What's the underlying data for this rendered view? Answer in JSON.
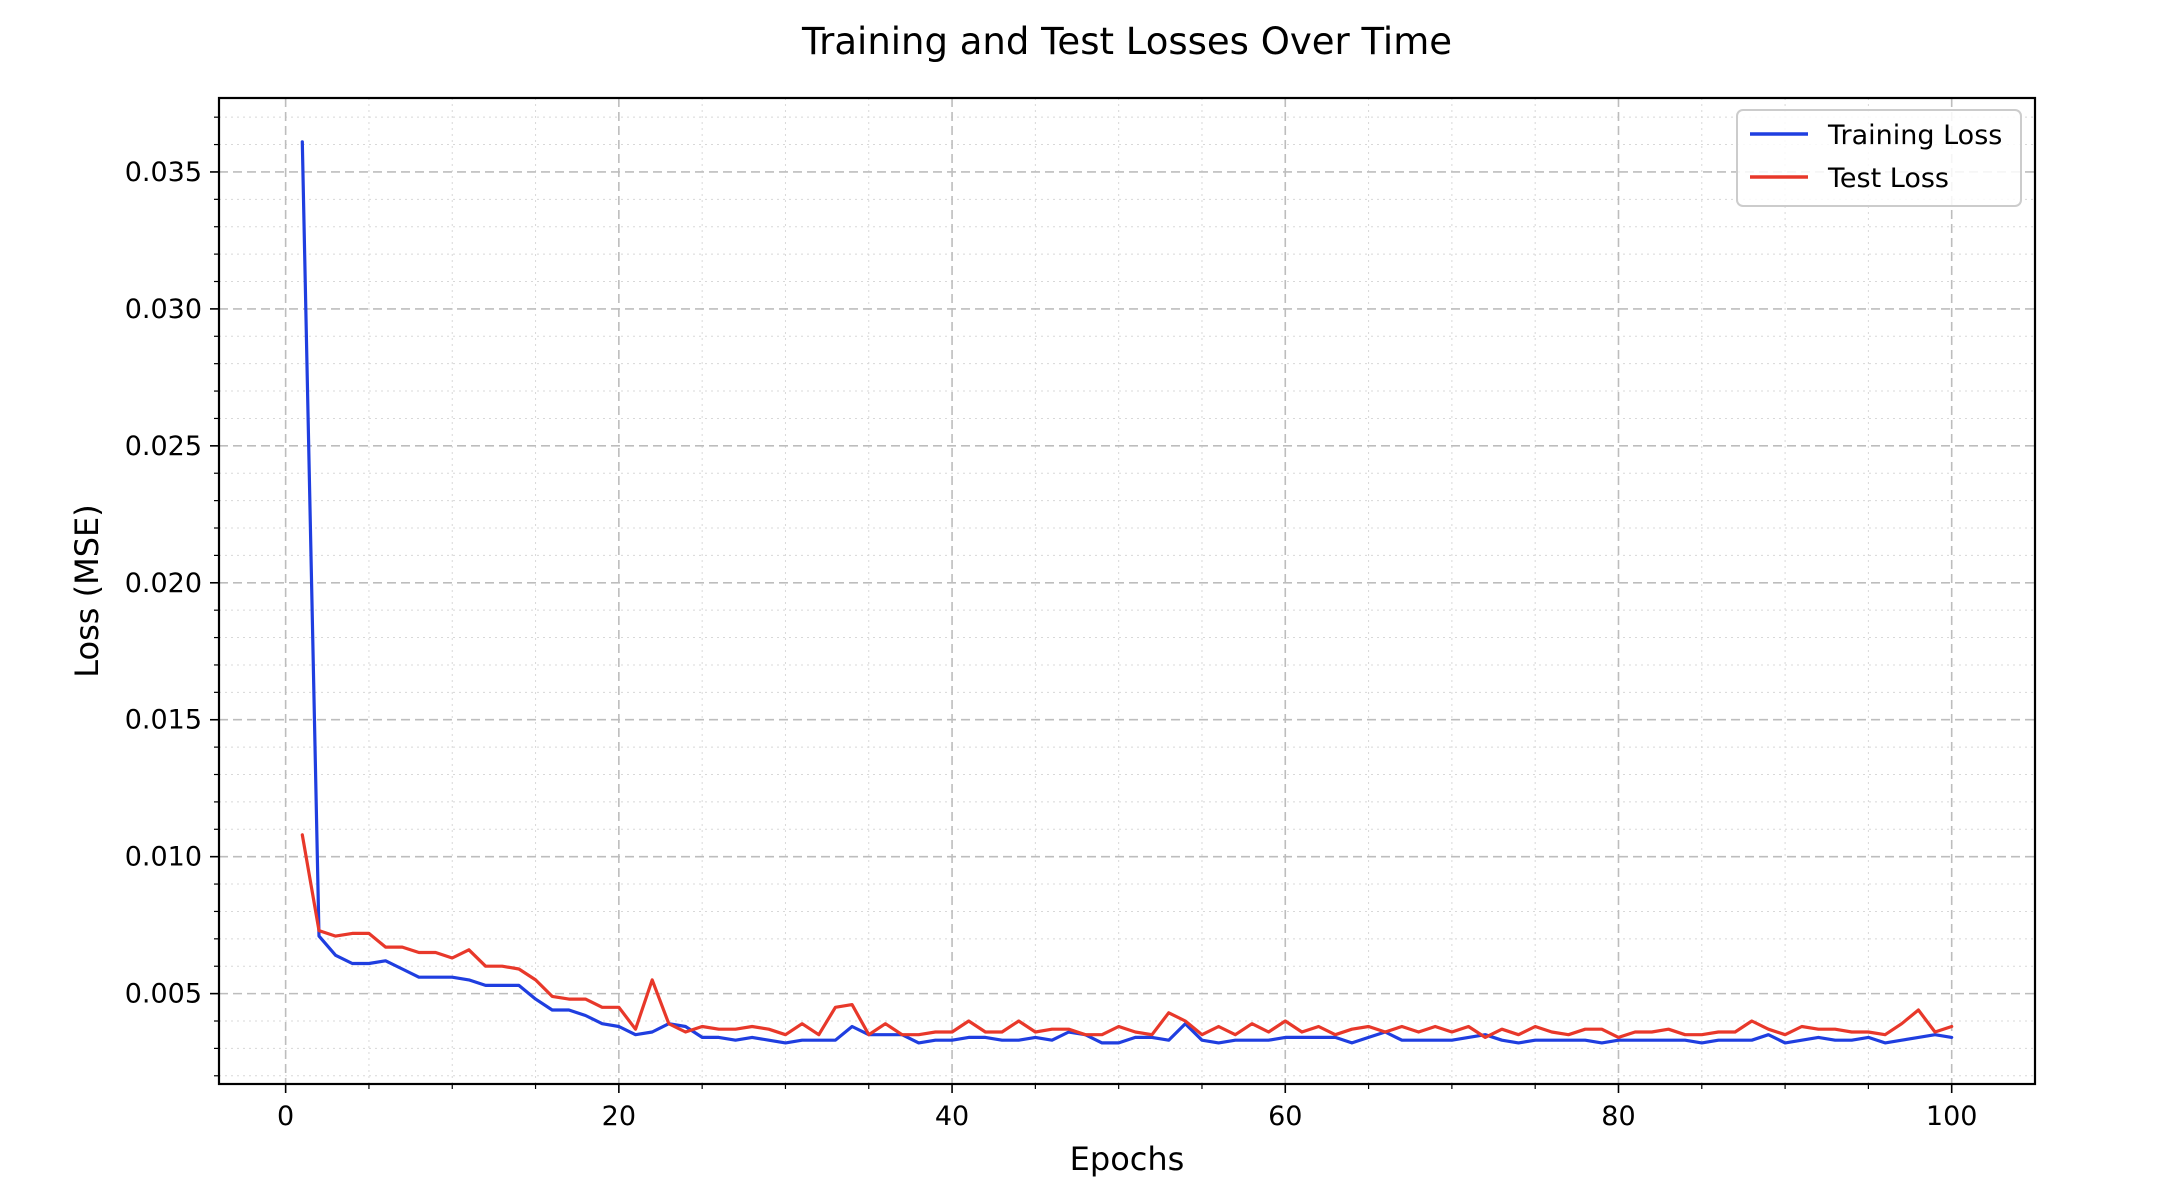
{
  "chart_data": {
    "type": "line",
    "title": "Training and Test Losses Over Time",
    "xlabel": "Epochs",
    "ylabel": "Loss (MSE)",
    "xlim": [
      -4,
      105
    ],
    "ylim": [
      0.0017,
      0.0377
    ],
    "xticks": [
      0,
      20,
      40,
      60,
      80,
      100
    ],
    "xtick_labels": [
      "0",
      "20",
      "40",
      "60",
      "80",
      "100"
    ],
    "yticks": [
      0.005,
      0.01,
      0.015,
      0.02,
      0.025,
      0.03,
      0.035
    ],
    "ytick_labels": [
      "0.005",
      "0.010",
      "0.015",
      "0.020",
      "0.025",
      "0.030",
      "0.035"
    ],
    "grid": true,
    "legend_position": "top-right",
    "series": [
      {
        "name": "Training Loss",
        "color": "#1f3ee0",
        "x": [
          1,
          2,
          3,
          4,
          5,
          6,
          7,
          8,
          9,
          10,
          11,
          12,
          13,
          14,
          15,
          16,
          17,
          18,
          19,
          20,
          21,
          22,
          23,
          24,
          25,
          26,
          27,
          28,
          29,
          30,
          31,
          32,
          33,
          34,
          35,
          36,
          37,
          38,
          39,
          40,
          41,
          42,
          43,
          44,
          45,
          46,
          47,
          48,
          49,
          50,
          51,
          52,
          53,
          54,
          55,
          56,
          57,
          58,
          59,
          60,
          61,
          62,
          63,
          64,
          65,
          66,
          67,
          68,
          69,
          70,
          71,
          72,
          73,
          74,
          75,
          76,
          77,
          78,
          79,
          80,
          81,
          82,
          83,
          84,
          85,
          86,
          87,
          88,
          89,
          90,
          91,
          92,
          93,
          94,
          95,
          96,
          97,
          98,
          99,
          100
        ],
        "values": [
          0.0361,
          0.0071,
          0.0064,
          0.0061,
          0.0061,
          0.0062,
          0.0059,
          0.0056,
          0.0056,
          0.0056,
          0.0055,
          0.0053,
          0.0053,
          0.0053,
          0.0048,
          0.0044,
          0.0044,
          0.0042,
          0.0039,
          0.0038,
          0.0035,
          0.0036,
          0.0039,
          0.0038,
          0.0034,
          0.0034,
          0.0033,
          0.0034,
          0.0033,
          0.0032,
          0.0033,
          0.0033,
          0.0033,
          0.0038,
          0.0035,
          0.0035,
          0.0035,
          0.0032,
          0.0033,
          0.0033,
          0.0034,
          0.0034,
          0.0033,
          0.0033,
          0.0034,
          0.0033,
          0.0036,
          0.0035,
          0.0032,
          0.0032,
          0.0034,
          0.0034,
          0.0033,
          0.0039,
          0.0033,
          0.0032,
          0.0033,
          0.0033,
          0.0033,
          0.0034,
          0.0034,
          0.0034,
          0.0034,
          0.0032,
          0.0034,
          0.0036,
          0.0033,
          0.0033,
          0.0033,
          0.0033,
          0.0034,
          0.0035,
          0.0033,
          0.0032,
          0.0033,
          0.0033,
          0.0033,
          0.0033,
          0.0032,
          0.0033,
          0.0033,
          0.0033,
          0.0033,
          0.0033,
          0.0032,
          0.0033,
          0.0033,
          0.0033,
          0.0035,
          0.0032,
          0.0033,
          0.0034,
          0.0033,
          0.0033,
          0.0034,
          0.0032,
          0.0033,
          0.0034,
          0.0035,
          0.0034
        ]
      },
      {
        "name": "Test Loss",
        "color": "#e8382a",
        "x": [
          1,
          2,
          3,
          4,
          5,
          6,
          7,
          8,
          9,
          10,
          11,
          12,
          13,
          14,
          15,
          16,
          17,
          18,
          19,
          20,
          21,
          22,
          23,
          24,
          25,
          26,
          27,
          28,
          29,
          30,
          31,
          32,
          33,
          34,
          35,
          36,
          37,
          38,
          39,
          40,
          41,
          42,
          43,
          44,
          45,
          46,
          47,
          48,
          49,
          50,
          51,
          52,
          53,
          54,
          55,
          56,
          57,
          58,
          59,
          60,
          61,
          62,
          63,
          64,
          65,
          66,
          67,
          68,
          69,
          70,
          71,
          72,
          73,
          74,
          75,
          76,
          77,
          78,
          79,
          80,
          81,
          82,
          83,
          84,
          85,
          86,
          87,
          88,
          89,
          90,
          91,
          92,
          93,
          94,
          95,
          96,
          97,
          98,
          99,
          100
        ],
        "values": [
          0.0108,
          0.0073,
          0.0071,
          0.0072,
          0.0072,
          0.0067,
          0.0067,
          0.0065,
          0.0065,
          0.0063,
          0.0066,
          0.006,
          0.006,
          0.0059,
          0.0055,
          0.0049,
          0.0048,
          0.0048,
          0.0045,
          0.0045,
          0.0037,
          0.0055,
          0.0039,
          0.0036,
          0.0038,
          0.0037,
          0.0037,
          0.0038,
          0.0037,
          0.0035,
          0.0039,
          0.0035,
          0.0045,
          0.0046,
          0.0035,
          0.0039,
          0.0035,
          0.0035,
          0.0036,
          0.0036,
          0.004,
          0.0036,
          0.0036,
          0.004,
          0.0036,
          0.0037,
          0.0037,
          0.0035,
          0.0035,
          0.0038,
          0.0036,
          0.0035,
          0.0043,
          0.004,
          0.0035,
          0.0038,
          0.0035,
          0.0039,
          0.0036,
          0.004,
          0.0036,
          0.0038,
          0.0035,
          0.0037,
          0.0038,
          0.0036,
          0.0038,
          0.0036,
          0.0038,
          0.0036,
          0.0038,
          0.0034,
          0.0037,
          0.0035,
          0.0038,
          0.0036,
          0.0035,
          0.0037,
          0.0037,
          0.0034,
          0.0036,
          0.0036,
          0.0037,
          0.0035,
          0.0035,
          0.0036,
          0.0036,
          0.004,
          0.0037,
          0.0035,
          0.0038,
          0.0037,
          0.0037,
          0.0036,
          0.0036,
          0.0035,
          0.0039,
          0.0044,
          0.0036,
          0.0038
        ]
      }
    ]
  }
}
